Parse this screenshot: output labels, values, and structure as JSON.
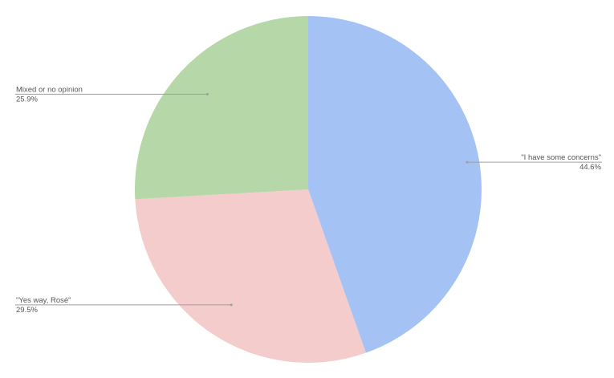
{
  "chart_data": {
    "type": "pie",
    "title": "",
    "start_angle_deg": 0,
    "direction": "clockwise",
    "slices": [
      {
        "label": "\"I have some concerns\"",
        "value": 44.6,
        "value_label": "44.6%",
        "color": "#a4c2f4"
      },
      {
        "label": "\"Yes way, Rosé\"",
        "value": 29.5,
        "value_label": "29.5%",
        "color": "#f4cccc"
      },
      {
        "label": "Mixed or no opinion",
        "value": 25.9,
        "value_label": "25.9%",
        "color": "#b6d7a8"
      }
    ]
  }
}
